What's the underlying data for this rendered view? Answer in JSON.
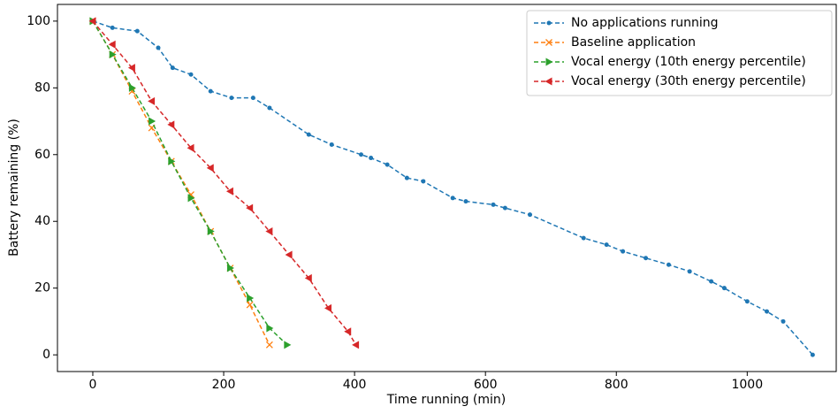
{
  "chart_data": {
    "type": "line",
    "xlabel": "Time running (min)",
    "ylabel": "Battery remaining (%)",
    "xlim": [
      -54,
      1136
    ],
    "ylim": [
      -5,
      105
    ],
    "xticks": [
      0,
      200,
      400,
      600,
      800,
      1000
    ],
    "yticks": [
      0,
      20,
      40,
      60,
      80,
      100
    ],
    "legend": "upper right",
    "linestyle": "dashed",
    "series": [
      {
        "name": "No applications running",
        "color": "#1f77b4",
        "marker": "circle",
        "x": [
          0,
          30,
          68,
          100,
          122,
          150,
          180,
          212,
          245,
          270,
          330,
          365,
          410,
          425,
          450,
          480,
          505,
          550,
          570,
          612,
          630,
          668,
          750,
          785,
          810,
          845,
          880,
          912,
          945,
          965,
          1000,
          1030,
          1055,
          1100
        ],
        "values": [
          100,
          98,
          97,
          92,
          86,
          84,
          79,
          77,
          77,
          74,
          66,
          63,
          60,
          59,
          57,
          53,
          52,
          47,
          46,
          45,
          44,
          42,
          35,
          33,
          31,
          29,
          27,
          25,
          22,
          20,
          16,
          13,
          10,
          0
        ]
      },
      {
        "name": "Baseline application",
        "color": "#ff7f0e",
        "marker": "x",
        "x": [
          0,
          30,
          60,
          90,
          120,
          150,
          180,
          210,
          240,
          270
        ],
        "values": [
          100,
          90,
          79,
          68,
          58,
          48,
          37,
          26,
          15,
          3
        ]
      },
      {
        "name": "Vocal energy (10th energy percentile)",
        "color": "#2ca02c",
        "marker": "triangle-right",
        "x": [
          0,
          30,
          60,
          90,
          120,
          150,
          180,
          210,
          240,
          270,
          297
        ],
        "values": [
          100,
          90,
          80,
          70,
          58,
          47,
          37,
          26,
          17,
          8,
          3
        ]
      },
      {
        "name": "Vocal energy (30th energy percentile)",
        "color": "#d62728",
        "marker": "triangle-left",
        "x": [
          0,
          30,
          60,
          90,
          120,
          150,
          180,
          210,
          240,
          270,
          300,
          330,
          360,
          390,
          402
        ],
        "values": [
          100,
          93,
          86,
          76,
          69,
          62,
          56,
          49,
          44,
          37,
          30,
          23,
          14,
          7,
          3
        ]
      }
    ]
  }
}
